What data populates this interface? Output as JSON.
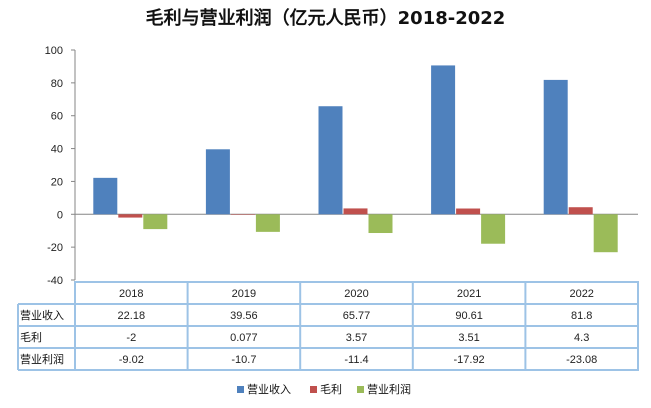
{
  "chart_data": {
    "type": "bar",
    "title": "毛利与营业利润（亿元人民币）2018-2022",
    "categories": [
      "2018",
      "2019",
      "2020",
      "2021",
      "2022"
    ],
    "series": [
      {
        "name": "营业收入",
        "values": [
          22.18,
          39.56,
          65.77,
          90.61,
          81.8
        ],
        "labels": [
          "22.18",
          "39.56",
          "65.77",
          "90.61",
          "81.8"
        ],
        "color": "#4f81bd"
      },
      {
        "name": "毛利",
        "values": [
          -2,
          0.077,
          3.57,
          3.51,
          4.3
        ],
        "labels": [
          "-2",
          "0.077",
          "3.57",
          "3.51",
          "4.3"
        ],
        "color": "#c0504d"
      },
      {
        "name": "营业利润",
        "values": [
          -9.02,
          -10.7,
          -11.4,
          -17.92,
          -23.08
        ],
        "labels": [
          "-9.02",
          "-10.7",
          "-11.4",
          "-17.92",
          "-23.08"
        ],
        "color": "#9bbb59"
      }
    ],
    "ylim": [
      -40,
      100
    ],
    "yticks": [
      "100",
      "80",
      "60",
      "40",
      "20",
      "0",
      "-20",
      "-40"
    ],
    "legend_position": "bottom",
    "data_table": true
  }
}
